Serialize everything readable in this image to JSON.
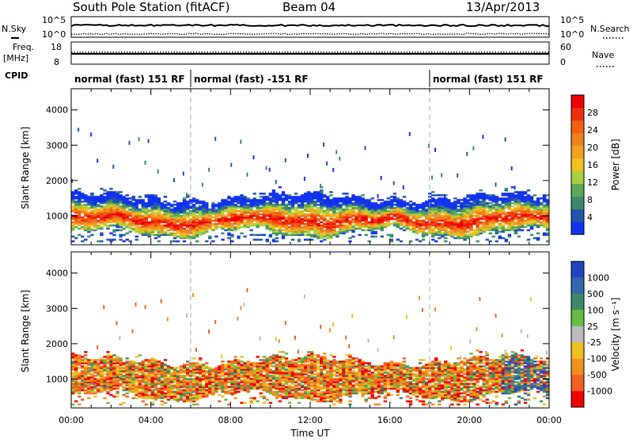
{
  "header": {
    "station": "South Pole Station (fitACF)",
    "beam": "Beam 04",
    "date": "13/Apr/2013"
  },
  "noise_panel": {
    "left_label": "N.Sky",
    "right_label": "N.Search",
    "left_ticks": [
      "10^5",
      "10^0"
    ],
    "right_ticks": [
      "10^5",
      "10^0"
    ]
  },
  "freq_panel": {
    "left_label_line1": "Freq.",
    "left_label_line2": "[MHz]",
    "right_label": "Nave",
    "left_ticks": [
      "18",
      "8"
    ],
    "right_ticks": [
      "60",
      "0"
    ]
  },
  "cpid": {
    "label": "CPID",
    "segments": [
      {
        "text": "normal (fast) 151 RF",
        "start_h": 0,
        "end_h": 6
      },
      {
        "text": "normal (fast) -151 RF",
        "start_h": 6,
        "end_h": 18
      },
      {
        "text": "normal (fast) 151 RF",
        "start_h": 18,
        "end_h": 24
      }
    ]
  },
  "chart_data": [
    {
      "type": "heatmap",
      "parameter": "power",
      "xlabel": "",
      "ylabel": "Slant Range [km]",
      "xlim": [
        0,
        24
      ],
      "ylim": [
        180,
        4600
      ],
      "yticks": [
        1000,
        2000,
        3000,
        4000
      ],
      "mode_change_h": [
        6,
        18
      ],
      "colorbar": {
        "label": "Power [dB]",
        "ticks": [
          "4",
          "8",
          "12",
          "16",
          "20",
          "24",
          "28"
        ],
        "colors": [
          "#1133ee",
          "#2255aa",
          "#3d8a6a",
          "#5aa85a",
          "#a8d040",
          "#f2c020",
          "#f0a020",
          "#f08020",
          "#f06010",
          "#ee3010",
          "#ee0000"
        ]
      },
      "echo_band_km": {
        "lower": 500,
        "upper": 1500
      },
      "scatter_max_km": 3600
    },
    {
      "type": "heatmap",
      "parameter": "velocity",
      "xlabel": "Time UT",
      "ylabel": "Slant Range [km]",
      "xlim": [
        0,
        24
      ],
      "ylim": [
        180,
        4600
      ],
      "yticks": [
        1000,
        2000,
        3000,
        4000
      ],
      "xticks": [
        "00:00",
        "04:00",
        "08:00",
        "12:00",
        "16:00",
        "20:00",
        "00:00"
      ],
      "mode_change_h": [
        6,
        18
      ],
      "colorbar": {
        "label": "Velocity [m s⁻¹]",
        "ticks": [
          "1000",
          "500",
          "100",
          "25",
          "-25",
          "-100",
          "-500",
          "-1000"
        ],
        "colors": [
          "#2244bb",
          "#3366aa",
          "#3d8a6a",
          "#66bb44",
          "#bbbbbb",
          "#f0c020",
          "#f09020",
          "#f06020",
          "#ee0000"
        ]
      },
      "echo_band_km": {
        "lower": 500,
        "upper": 1500
      },
      "scatter_max_km": 3600
    }
  ]
}
